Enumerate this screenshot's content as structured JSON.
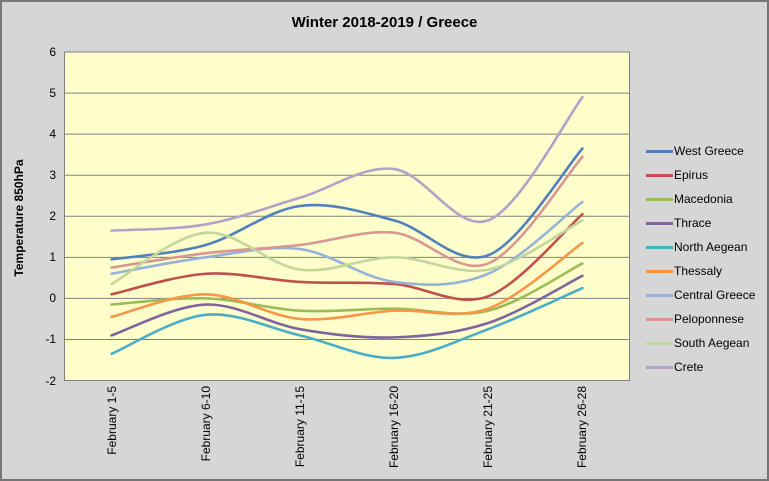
{
  "colors": {
    "canvas_bg": "#d6d6d6",
    "plot_bg": "#ffffcc",
    "grid": "#808080",
    "plot_border": "#808080",
    "text": "#000000"
  },
  "chart_data": {
    "type": "line",
    "title": "Winter 2018-2019 / Greece",
    "ylabel": "Temperature 850hPa",
    "xlabel": "",
    "ylim": [
      -2,
      6
    ],
    "ytick_step": 1,
    "yticks": [
      6,
      5,
      4,
      3,
      2,
      1,
      0,
      -1,
      -2
    ],
    "grid": "horizontal",
    "line_style": "smooth",
    "legend_position": "right",
    "categories": [
      "February 1-5",
      "February 6-10",
      "February 11-15",
      "February 16-20",
      "February 21-25",
      "February 26-28"
    ],
    "series": [
      {
        "name": "West Greece",
        "color": "#4F81BD",
        "values": [
          0.95,
          1.3,
          2.25,
          1.9,
          1.05,
          3.65
        ]
      },
      {
        "name": "Epirus",
        "color": "#C0504D",
        "values": [
          0.1,
          0.6,
          0.4,
          0.35,
          0.05,
          2.05
        ]
      },
      {
        "name": "Macedonia",
        "color": "#9BBB59",
        "values": [
          -0.15,
          0.0,
          -0.3,
          -0.25,
          -0.3,
          0.85
        ]
      },
      {
        "name": "Thrace",
        "color": "#8064A2",
        "values": [
          -0.9,
          -0.15,
          -0.75,
          -0.95,
          -0.6,
          0.55
        ]
      },
      {
        "name": "North Aegean",
        "color": "#4BACC6",
        "values": [
          -1.35,
          -0.4,
          -0.9,
          -1.45,
          -0.75,
          0.25
        ]
      },
      {
        "name": "Thessaly",
        "color": "#F79646",
        "values": [
          -0.45,
          0.1,
          -0.5,
          -0.3,
          -0.25,
          1.35
        ]
      },
      {
        "name": "Central Greece",
        "color": "#95B3D7",
        "values": [
          0.6,
          1.0,
          1.2,
          0.4,
          0.6,
          2.35
        ]
      },
      {
        "name": "Peloponnese",
        "color": "#D99694",
        "values": [
          0.75,
          1.1,
          1.3,
          1.6,
          0.85,
          3.45
        ]
      },
      {
        "name": "South Aegean",
        "color": "#C3D69B",
        "values": [
          0.35,
          1.6,
          0.7,
          1.0,
          0.7,
          1.9
        ]
      },
      {
        "name": "Crete",
        "color": "#B3A2C7",
        "values": [
          1.65,
          1.8,
          2.45,
          3.15,
          1.9,
          4.9
        ]
      }
    ]
  }
}
